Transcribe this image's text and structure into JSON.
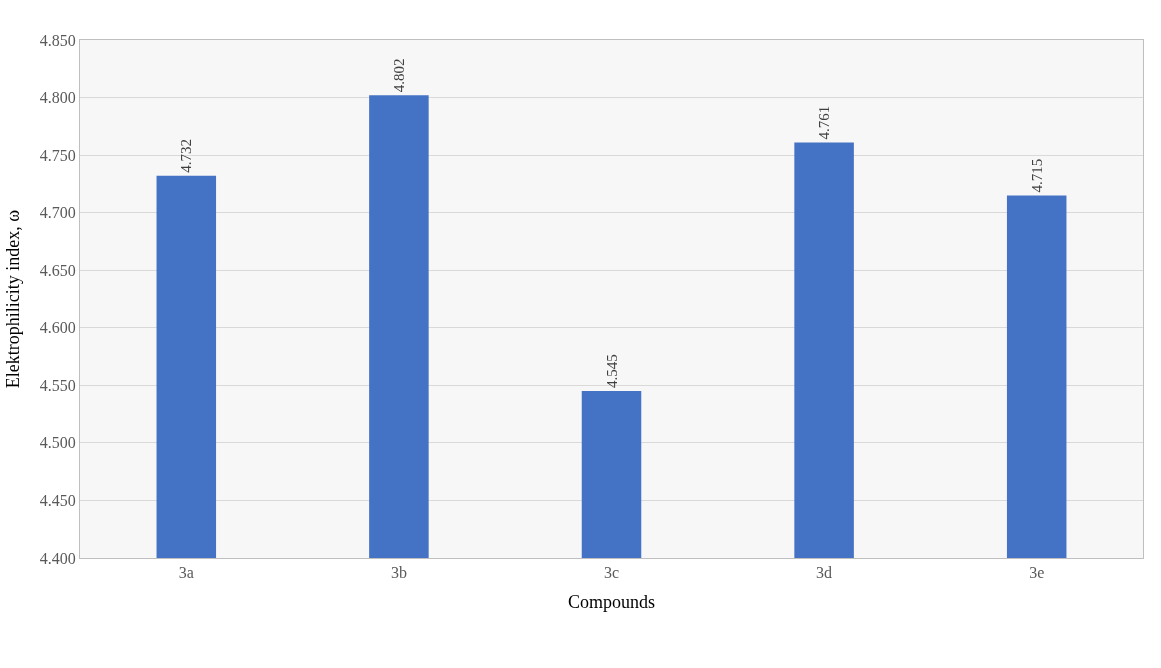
{
  "chart_data": {
    "type": "bar",
    "xlabel": "Compounds",
    "ylabel": "Elektrophilicity index, ω",
    "categories": [
      "3a",
      "3b",
      "3c",
      "3d",
      "3e"
    ],
    "values": [
      4.732,
      4.802,
      4.545,
      4.761,
      4.715
    ],
    "colors": [
      "#4472c4",
      "#4472c4",
      "#4472c4",
      "#4472c4",
      "#4472c4"
    ],
    "ylim": [
      4.4,
      4.85
    ],
    "yticks": [
      {
        "value": 4.4,
        "label": "4.400"
      },
      {
        "value": 4.45,
        "label": "4.450"
      },
      {
        "value": 4.5,
        "label": "4.500"
      },
      {
        "value": 4.55,
        "label": "4.550"
      },
      {
        "value": 4.6,
        "label": "4.600"
      },
      {
        "value": 4.65,
        "label": "4.650"
      },
      {
        "value": 4.7,
        "label": "4.700"
      },
      {
        "value": 4.75,
        "label": "4.750"
      },
      {
        "value": 4.8,
        "label": "4.800"
      },
      {
        "value": 4.85,
        "label": "4.850"
      }
    ],
    "grid": "y",
    "data_labels": true
  }
}
